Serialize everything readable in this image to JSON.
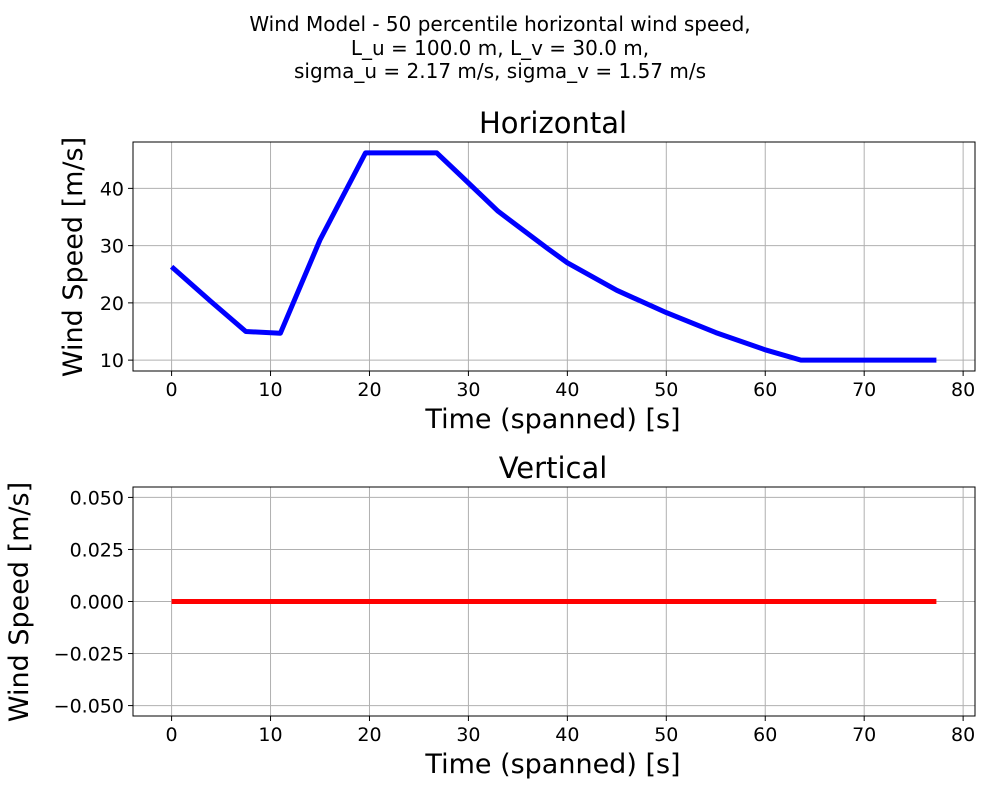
{
  "suptitle": {
    "line1": "Wind Model - 50 percentile horizontal wind speed,",
    "line2": "L_u = 100.0 m, L_v = 30.0 m,",
    "line3": "sigma_u = 2.17 m/s, sigma_v = 1.57 m/s"
  },
  "chart_data": [
    {
      "type": "line",
      "title": "Horizontal",
      "xlabel": "Time (spanned) [s]",
      "ylabel": "Wind Speed [m/s]",
      "xlim": [
        -3.9,
        81.2
      ],
      "ylim": [
        8.1,
        48.1
      ],
      "xticks": [
        0,
        10,
        20,
        30,
        40,
        50,
        60,
        70,
        80
      ],
      "xtick_labels": [
        "0",
        "10",
        "20",
        "30",
        "40",
        "50",
        "60",
        "70",
        "80"
      ],
      "yticks": [
        10,
        20,
        30,
        40
      ],
      "ytick_labels": [
        "10",
        "20",
        "30",
        "40"
      ],
      "grid": true,
      "color": "#0000ff",
      "series": [
        {
          "x": [
            0,
            4,
            7.5,
            11,
            15,
            19.6,
            26.8,
            29,
            33,
            38,
            40,
            45,
            50,
            55,
            60,
            63.6,
            77.3
          ],
          "y": [
            26.3,
            20.2,
            15.0,
            14.7,
            31.0,
            46.2,
            46.2,
            42.6,
            36.0,
            29.5,
            27.0,
            22.2,
            18.3,
            14.8,
            11.8,
            10.0,
            10.0
          ]
        }
      ]
    },
    {
      "type": "line",
      "title": "Vertical",
      "xlabel": "Time (spanned) [s]",
      "ylabel": "Wind Speed [m/s]",
      "xlim": [
        -3.9,
        81.2
      ],
      "ylim": [
        -0.055,
        0.055
      ],
      "xticks": [
        0,
        10,
        20,
        30,
        40,
        50,
        60,
        70,
        80
      ],
      "xtick_labels": [
        "0",
        "10",
        "20",
        "30",
        "40",
        "50",
        "60",
        "70",
        "80"
      ],
      "yticks": [
        -0.05,
        -0.025,
        0,
        0.025,
        0.05
      ],
      "ytick_labels": [
        "−0.050",
        "−0.025",
        "0.000",
        "0.025",
        "0.050"
      ],
      "grid": true,
      "color": "#ff0000",
      "series": [
        {
          "x": [
            0,
            77.3
          ],
          "y": [
            0,
            0
          ]
        }
      ]
    }
  ]
}
